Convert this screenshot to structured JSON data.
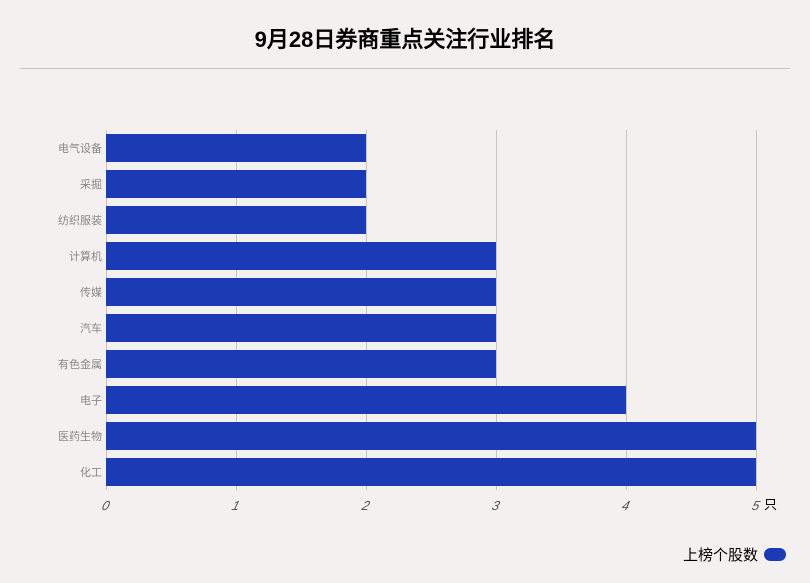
{
  "title": {
    "text": "9月28日券商重点关注行业排名",
    "fontsize": 22
  },
  "chart": {
    "type": "bar-horizontal",
    "background_color": "#f4f0f0",
    "grid_color": "#c8c4c4",
    "bar_color": "#1a3bb3",
    "xlim": [
      0,
      5
    ],
    "xtick_step": 1,
    "xticks": [
      "0",
      "1",
      "2",
      "3",
      "4",
      "5"
    ],
    "x_axis_label": "只",
    "categories": [
      "电气设备",
      "采掘",
      "纺织服装",
      "计算机",
      "传媒",
      "汽车",
      "有色金属",
      "电子",
      "医药生物",
      "化工"
    ],
    "values": [
      2,
      2,
      2,
      3,
      3,
      3,
      3,
      4,
      5,
      5
    ],
    "y_label_color": "#888888",
    "y_label_fontsize": 11,
    "x_tick_fontsize": 13,
    "bar_height_ratio": 0.8
  },
  "legend": {
    "label": "上榜个股数",
    "color": "#1a3bb3"
  }
}
